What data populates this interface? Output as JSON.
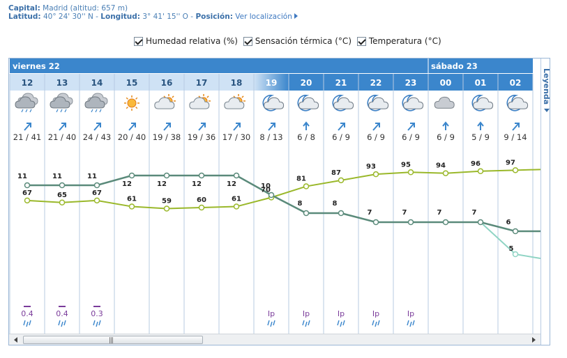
{
  "location": {
    "capital_label": "Capital:",
    "capital_value": "Madrid (altitud: 657 m)",
    "lat_label": "Latitud:",
    "lat_value": "40° 24' 30'' N",
    "sep": "-",
    "lon_label": "Longitud:",
    "lon_value": "3° 41' 15'' O",
    "sep2": "-",
    "pos_label": "Posición:",
    "pos_link": "Ver localización"
  },
  "checkboxes": [
    {
      "label": "Humedad relativa (%)",
      "checked": true
    },
    {
      "label": "Sensación térmica (°C)",
      "checked": true
    },
    {
      "label": "Temperatura (°C)",
      "checked": true
    }
  ],
  "legend_label": "Leyenda",
  "days": [
    {
      "label": "viernes 22",
      "start": 0,
      "end": 12
    },
    {
      "label": "sábado 23",
      "start": 12,
      "end": 15
    }
  ],
  "colors": {
    "header_blue": "#3b86cc",
    "day_row": "#3b86cc",
    "hour_light": "#cfe2f5",
    "hour_text_dark": "#2a5580",
    "temp_line": "#5a8a7a",
    "humidity_line": "#9ab82a",
    "feels_line": "#8fd4c4",
    "precip": "#7a3b9a",
    "wind_arrow": "#3b86cc",
    "grid": "#b7cbe2"
  },
  "hours": [
    {
      "hour": "12",
      "night": false,
      "icon": "cloudy-rain-icon",
      "wind": "arrow-ne-icon",
      "wind_speed": "21 / 41",
      "temp": 11,
      "humidity": 67,
      "precip": "0.4",
      "precip_icon": "rain-drops-icon",
      "bar": true
    },
    {
      "hour": "13",
      "night": false,
      "icon": "cloudy-rain-icon",
      "wind": "arrow-ne-icon",
      "wind_speed": "21 / 40",
      "temp": 11,
      "humidity": 65,
      "precip": "0.4",
      "precip_icon": "rain-drops-icon",
      "bar": true
    },
    {
      "hour": "14",
      "night": false,
      "icon": "cloudy-rain-icon",
      "wind": "arrow-ne-icon",
      "wind_speed": "24 / 43",
      "temp": 11,
      "humidity": 67,
      "precip": "0.3",
      "precip_icon": "rain-drops-icon",
      "bar": true
    },
    {
      "hour": "15",
      "night": false,
      "icon": "sun-icon",
      "wind": "arrow-ne-icon",
      "wind_speed": "20 / 40",
      "temp": 12,
      "humidity": 61,
      "precip": "",
      "precip_icon": "",
      "bar": false
    },
    {
      "hour": "16",
      "night": false,
      "icon": "sun-cloud-icon",
      "wind": "arrow-ne-icon",
      "wind_speed": "19 / 38",
      "temp": 12,
      "humidity": 59,
      "precip": "",
      "precip_icon": "",
      "bar": false
    },
    {
      "hour": "17",
      "night": false,
      "icon": "sun-cloud-icon",
      "wind": "arrow-ne-icon",
      "wind_speed": "19 / 36",
      "temp": 12,
      "humidity": 60,
      "precip": "",
      "precip_icon": "",
      "bar": false
    },
    {
      "hour": "18",
      "night": false,
      "icon": "sun-cloud-icon",
      "wind": "arrow-ne-icon",
      "wind_speed": "17 / 30",
      "temp": 12,
      "humidity": 61,
      "precip": "",
      "precip_icon": "",
      "bar": false
    },
    {
      "hour": "19",
      "night": true,
      "icon": "moon-cloud-icon",
      "wind": "arrow-ne-icon",
      "wind_speed": "8 / 13",
      "temp": 10,
      "humidity": 70,
      "precip": "Ip",
      "precip_icon": "rain-drops-icon",
      "bar": false
    },
    {
      "hour": "20",
      "night": true,
      "icon": "moon-cloud-icon",
      "wind": "arrow-n-icon",
      "wind_speed": "6 / 8",
      "temp": 8,
      "humidity": 81,
      "precip": "Ip",
      "precip_icon": "rain-drops-icon",
      "bar": false
    },
    {
      "hour": "21",
      "night": true,
      "icon": "moon-cloud-icon",
      "wind": "arrow-ne-icon",
      "wind_speed": "6 / 9",
      "temp": 8,
      "humidity": 87,
      "precip": "Ip",
      "precip_icon": "rain-drops-icon",
      "bar": false
    },
    {
      "hour": "22",
      "night": true,
      "icon": "moon-cloud-icon",
      "wind": "arrow-ne-icon",
      "wind_speed": "6 / 9",
      "temp": 7,
      "humidity": 93,
      "precip": "Ip",
      "precip_icon": "rain-drops-icon",
      "bar": false
    },
    {
      "hour": "23",
      "night": true,
      "icon": "moon-cloud-icon",
      "wind": "arrow-ne-icon",
      "wind_speed": "6 / 9",
      "temp": 7,
      "humidity": 95,
      "precip": "Ip",
      "precip_icon": "rain-drops-icon",
      "bar": false
    },
    {
      "hour": "00",
      "night": true,
      "icon": "cloud-icon",
      "wind": "arrow-n-icon",
      "wind_speed": "6 / 9",
      "temp": 7,
      "humidity": 94,
      "precip": "",
      "precip_icon": "",
      "bar": false
    },
    {
      "hour": "01",
      "night": true,
      "icon": "moon-cloud-icon",
      "wind": "arrow-n-icon",
      "wind_speed": "5 / 9",
      "temp": 7,
      "humidity": 96,
      "precip": "",
      "precip_icon": "",
      "bar": false
    },
    {
      "hour": "02",
      "night": true,
      "icon": "moon-cloud-icon",
      "wind": "arrow-ne-icon",
      "wind_speed": "9 / 14",
      "temp": 6,
      "humidity": 97,
      "precip": "",
      "precip_icon": "",
      "bar": false
    }
  ],
  "feels_like_visible": [
    {
      "hour": "02",
      "value": 5
    }
  ]
}
